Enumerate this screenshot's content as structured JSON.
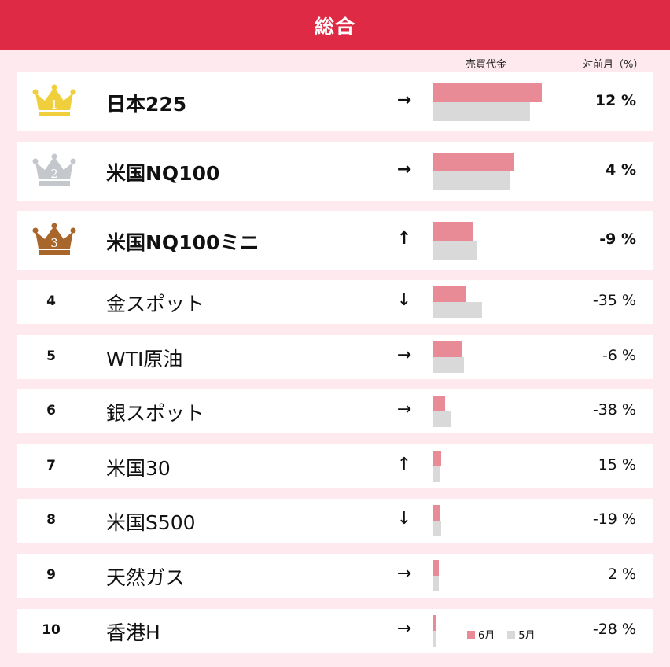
{
  "header": {
    "title": "総合"
  },
  "columns": {
    "volume": "売買代金",
    "change": "対前月（%）"
  },
  "legend": {
    "current": "6月",
    "previous": "5月"
  },
  "colors": {
    "header": "#de2a45",
    "current": "#e98b97",
    "previous": "#d9d9d9",
    "background": "#fde9ee"
  },
  "chart_data": {
    "type": "bar",
    "title": "総合",
    "series": [
      {
        "name": "6月",
        "values": [
          100,
          74,
          37,
          30,
          26,
          11,
          7,
          6,
          5,
          2
        ]
      },
      {
        "name": "5月",
        "values": [
          89,
          71,
          40,
          45,
          28,
          17,
          6,
          7,
          5,
          2
        ]
      }
    ],
    "categories": [
      "日本225",
      "米国NQ100",
      "米国NQ100ミニ",
      "金スポット",
      "WTI原油",
      "銀スポット",
      "米国30",
      "米国S500",
      "天然ガス",
      "香港H"
    ]
  },
  "rows": [
    {
      "rank": "1",
      "name": "日本225",
      "trend": "→",
      "trend_icon": "right-arrow-icon",
      "change": "12 %",
      "crown_color": "#f0cf3c"
    },
    {
      "rank": "2",
      "name": "米国NQ100",
      "trend": "→",
      "trend_icon": "right-arrow-icon",
      "change": "4 %",
      "crown_color": "#c4c7cc"
    },
    {
      "rank": "3",
      "name": "米国NQ100ミニ",
      "trend": "↑",
      "trend_icon": "up-arrow-icon",
      "change": "-9 %",
      "crown_color": "#a8662a"
    },
    {
      "rank": "4",
      "name": "金スポット",
      "trend": "↓",
      "trend_icon": "down-arrow-icon",
      "change": "-35 %"
    },
    {
      "rank": "5",
      "name": "WTI原油",
      "trend": "→",
      "trend_icon": "right-arrow-icon",
      "change": "-6 %"
    },
    {
      "rank": "6",
      "name": "銀スポット",
      "trend": "→",
      "trend_icon": "right-arrow-icon",
      "change": "-38 %"
    },
    {
      "rank": "7",
      "name": "米国30",
      "trend": "↑",
      "trend_icon": "up-arrow-icon",
      "change": "15 %"
    },
    {
      "rank": "8",
      "name": "米国S500",
      "trend": "↓",
      "trend_icon": "down-arrow-icon",
      "change": "-19 %"
    },
    {
      "rank": "9",
      "name": "天然ガス",
      "trend": "→",
      "trend_icon": "right-arrow-icon",
      "change": "2 %"
    },
    {
      "rank": "10",
      "name": "香港H",
      "trend": "→",
      "trend_icon": "right-arrow-icon",
      "change": "-28 %"
    }
  ]
}
